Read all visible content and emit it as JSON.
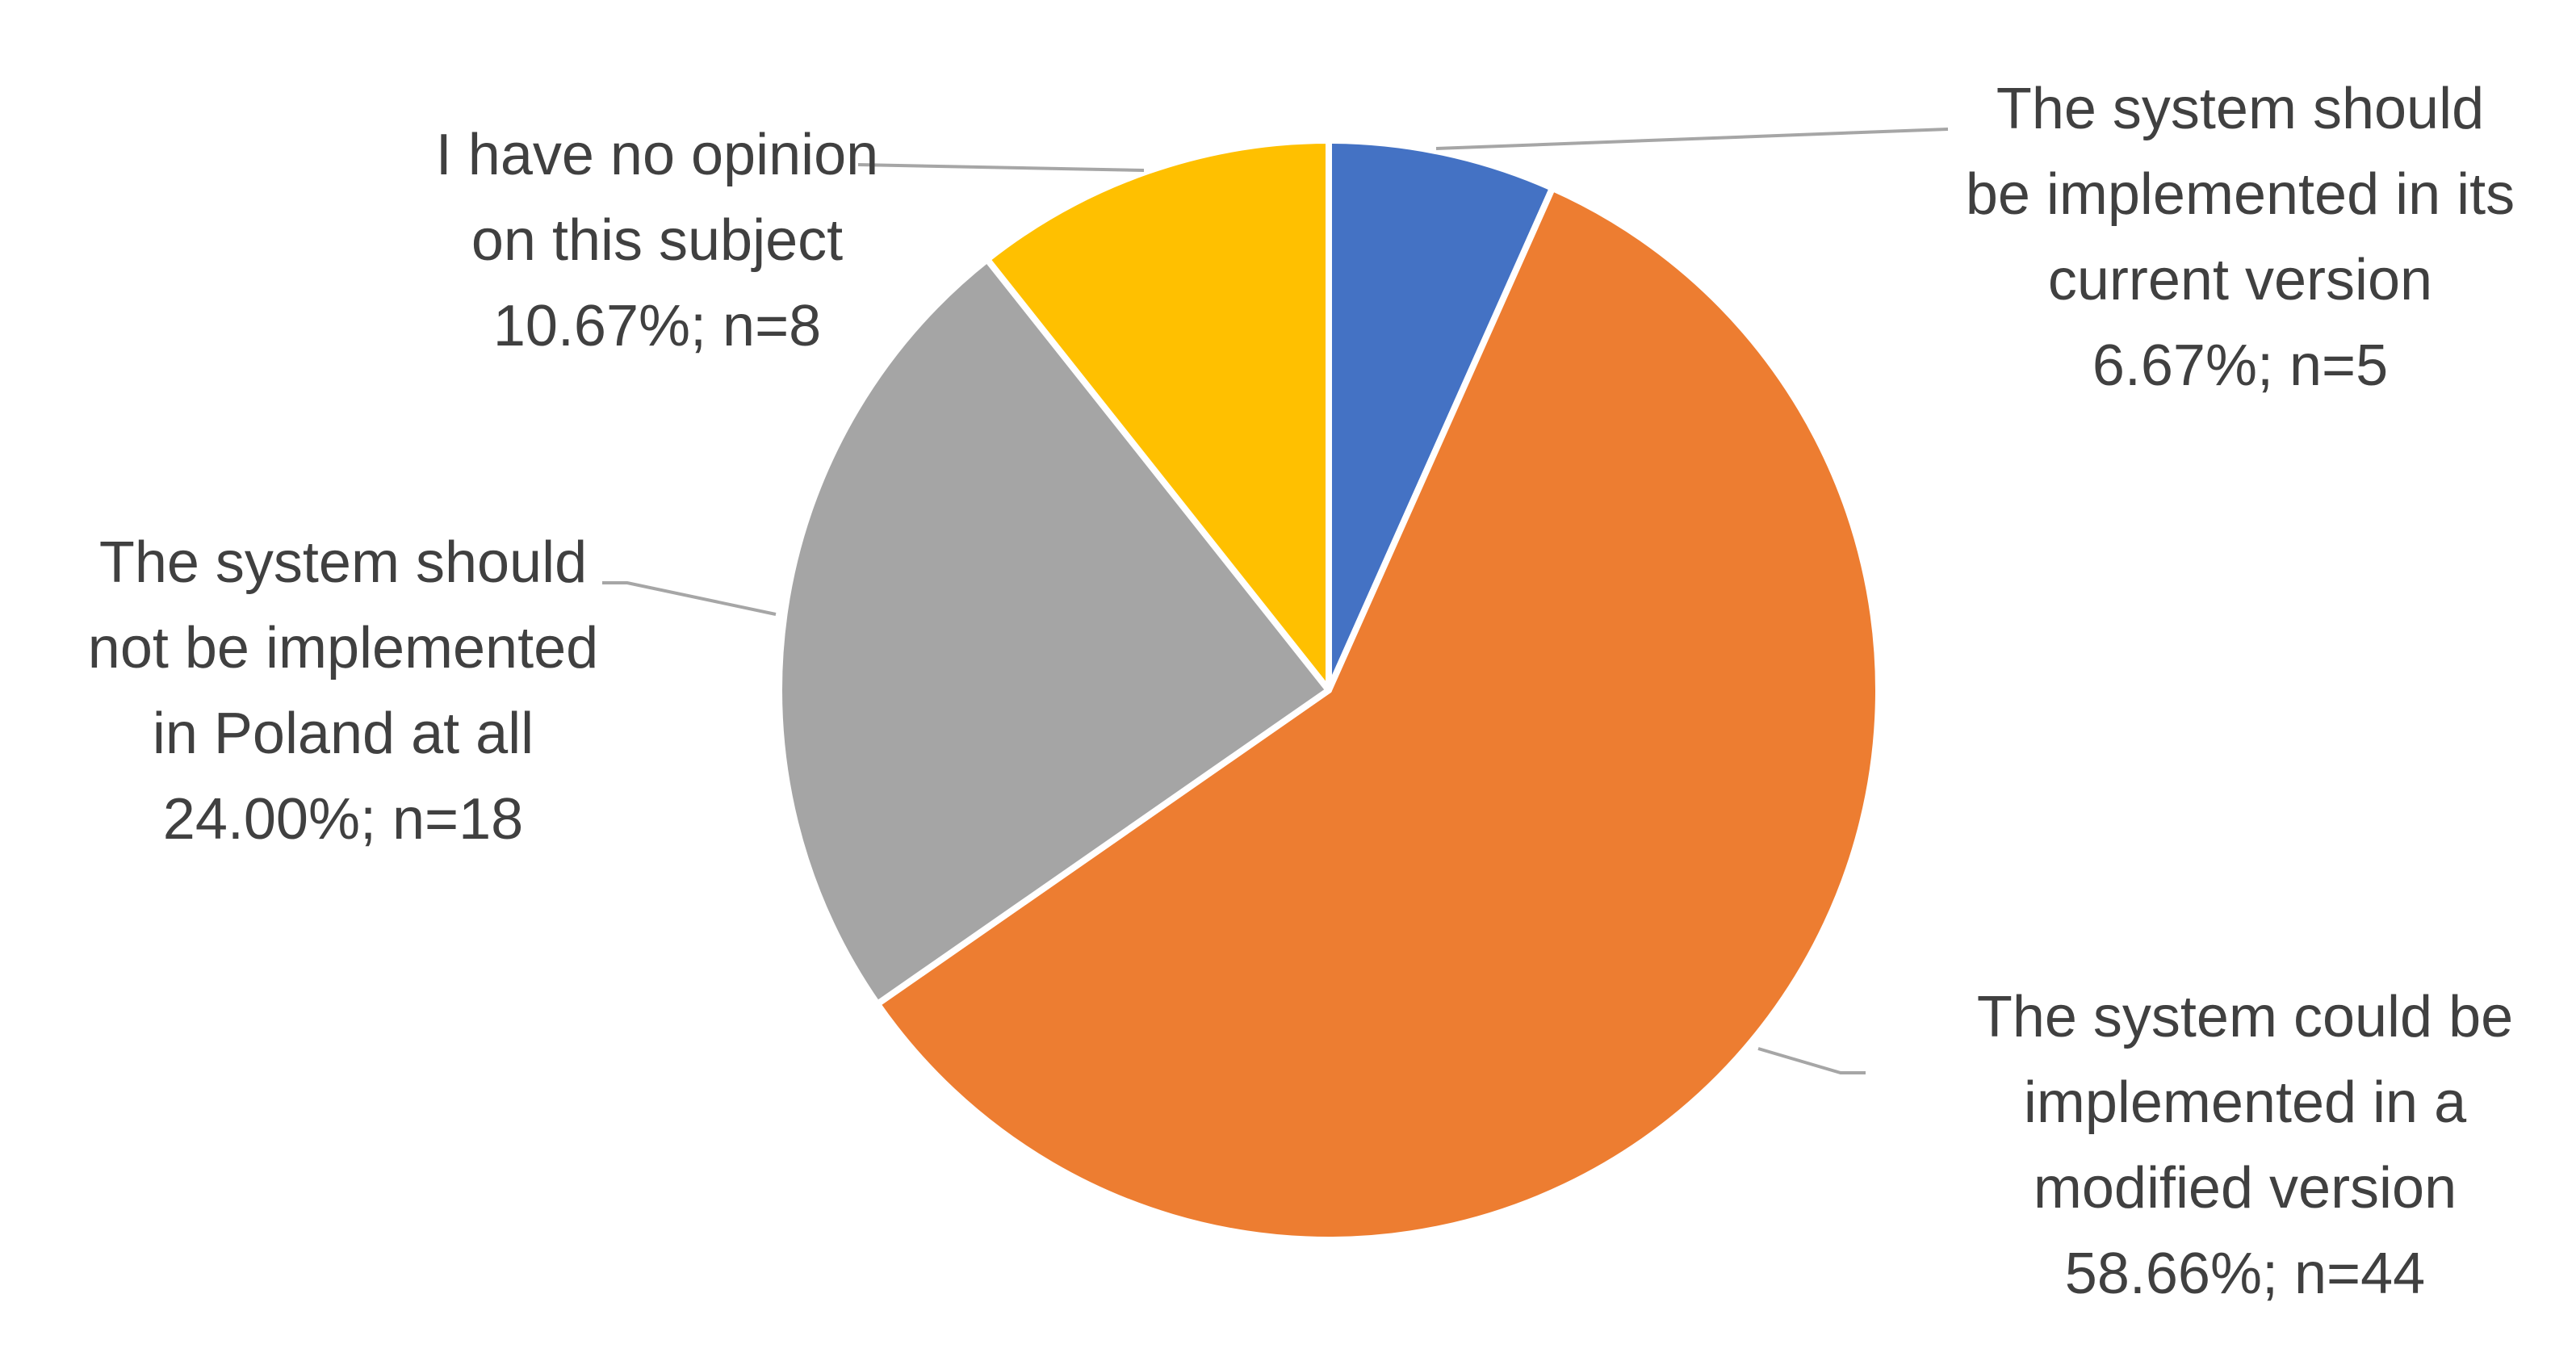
{
  "chart_data": {
    "type": "pie",
    "categories": [
      "The system should be implemented in its current version",
      "The system could be implemented in a modified version",
      "The system should not be implemented in Poland at all",
      "I have no opinion on this subject"
    ],
    "values": [
      6.67,
      58.66,
      24.0,
      10.67
    ],
    "value_labels": [
      "6.67%; n=5",
      "58.66%; n=44",
      "24.00%; n=18",
      "10.67%; n=8"
    ],
    "colors": [
      "#4472c4",
      "#ed7d31",
      "#a5a5a5",
      "#ffc000"
    ]
  }
}
